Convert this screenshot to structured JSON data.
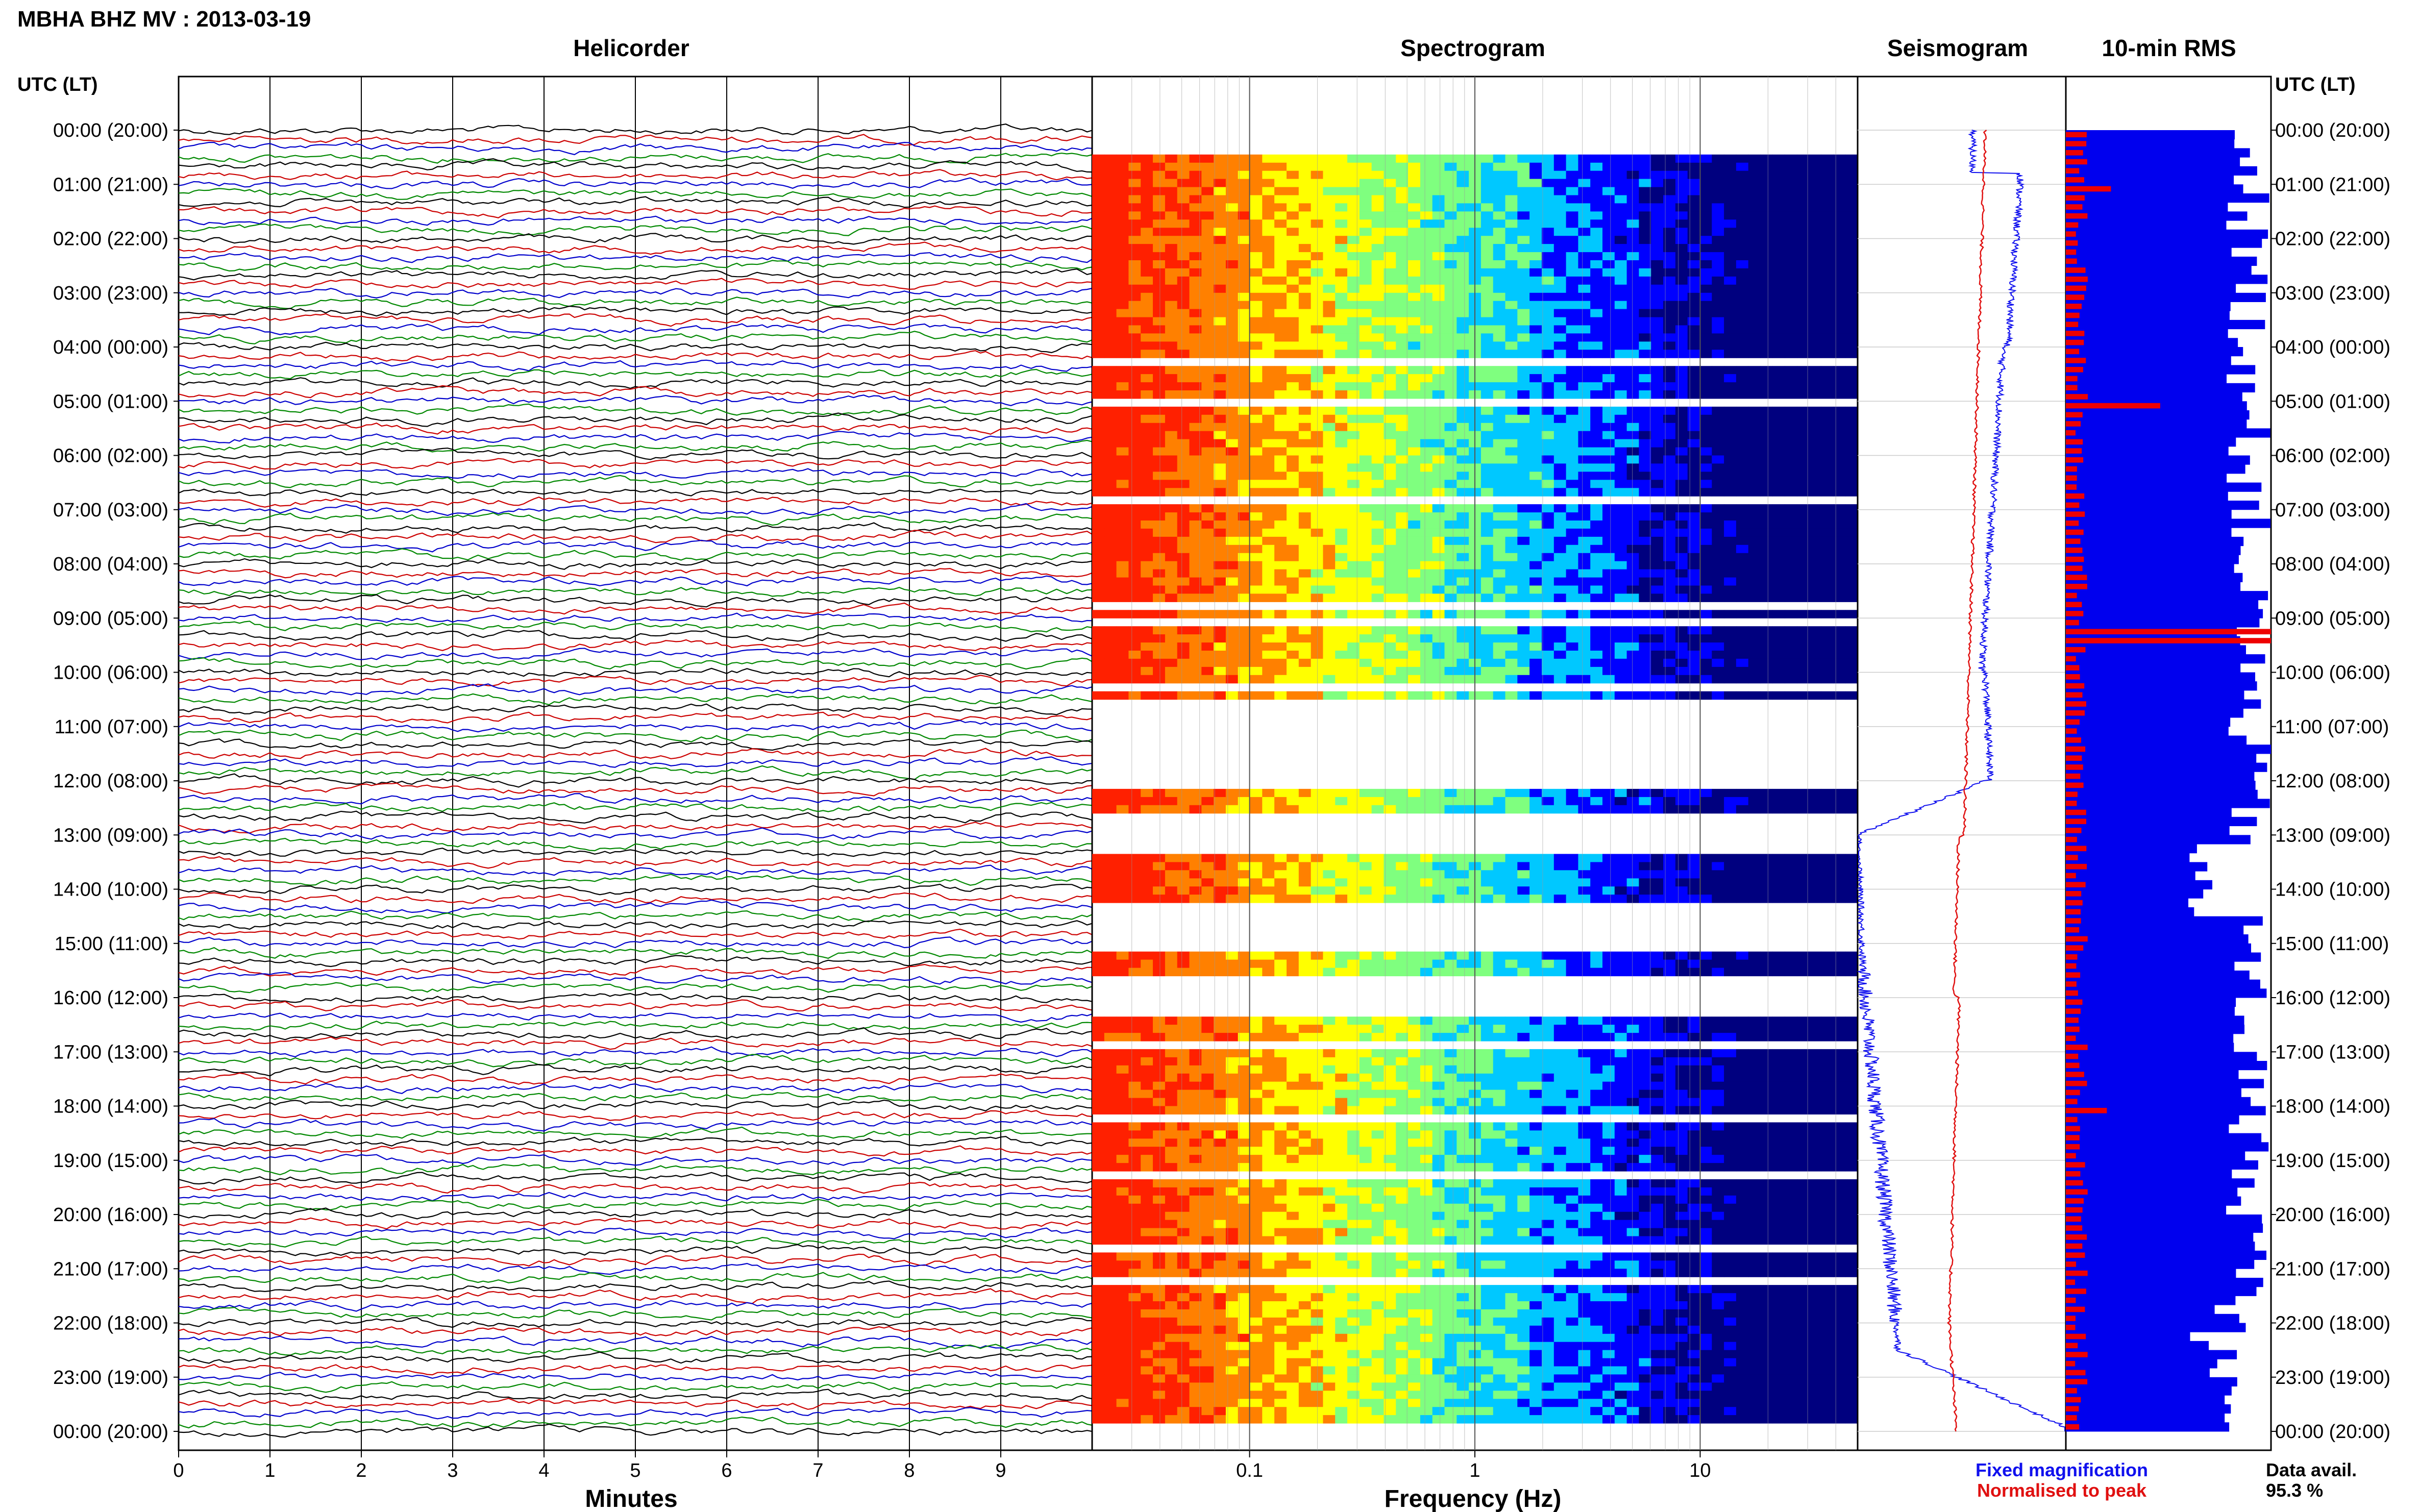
{
  "chart_data": {
    "type": "heatmap",
    "title": "MBHA BHZ MV : 2013-03-19",
    "time_axis_label": "UTC (LT)",
    "row_labels": [
      "00:00 (20:00)",
      "01:00 (21:00)",
      "02:00 (22:00)",
      "03:00 (23:00)",
      "04:00 (00:00)",
      "05:00 (01:00)",
      "06:00 (02:00)",
      "07:00 (03:00)",
      "08:00 (04:00)",
      "09:00 (05:00)",
      "10:00 (06:00)",
      "11:00 (07:00)",
      "12:00 (08:00)",
      "13:00 (09:00)",
      "14:00 (10:00)",
      "15:00 (11:00)",
      "16:00 (12:00)",
      "17:00 (13:00)",
      "18:00 (14:00)",
      "19:00 (15:00)",
      "20:00 (16:00)",
      "21:00 (17:00)",
      "22:00 (18:00)",
      "23:00 (19:00)",
      "00:00 (20:00)"
    ],
    "panels": {
      "helicorder": {
        "title": "Helicorder",
        "xlabel": "Minutes",
        "xticks": [
          "0",
          "1",
          "2",
          "3",
          "4",
          "5",
          "6",
          "7",
          "8",
          "9"
        ],
        "xlim": [
          0,
          10
        ],
        "trace_colors": [
          "#000000",
          "#cc0000",
          "#0000cc",
          "#008800"
        ],
        "traces_per_hour": 6,
        "hours": 24
      },
      "spectrogram": {
        "title": "Spectrogram",
        "xlabel": "Frequency (Hz)",
        "xscale": "log",
        "xlim": [
          0.02,
          50
        ],
        "xticks": [
          "0.1",
          "1",
          "10"
        ],
        "colormap": [
          "#00007f",
          "#0000ff",
          "#00c8ff",
          "#7fff7f",
          "#ffff00",
          "#ff8000",
          "#ff2000"
        ],
        "gaps_hours": [
          [
            10.5,
            12.1
          ],
          [
            12.6,
            13.2
          ],
          [
            14.2,
            15.1
          ],
          [
            15.6,
            16.2
          ]
        ]
      },
      "seismogram": {
        "title": "Seismogram",
        "legend": [
          {
            "label": "Fixed magnification",
            "color": "#1010ee"
          },
          {
            "label": "Normalised to peak",
            "color": "#e01010"
          }
        ]
      },
      "rms": {
        "title": "10-min RMS",
        "data_availability_label": "Data avail.",
        "data_availability_value": "95.3 %",
        "colors": {
          "fixed": "#0000ee",
          "normalised": "#ee0000"
        },
        "spike_hours": [
          {
            "hour": 5.0,
            "value": 0.46
          },
          {
            "hour": 9.25,
            "value": 1.0
          },
          {
            "hour": 0.95,
            "value": 0.22
          },
          {
            "hour": 18.0,
            "value": 0.2
          }
        ]
      }
    }
  }
}
